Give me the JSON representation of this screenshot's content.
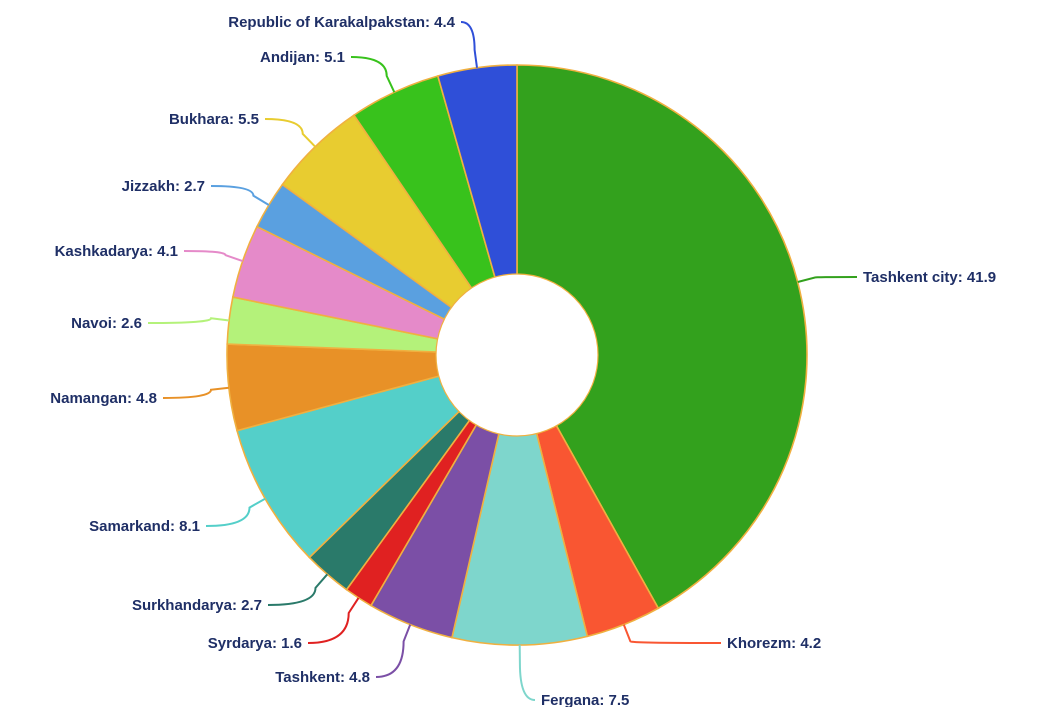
{
  "chart_data": {
    "type": "pie",
    "style": "donut",
    "title": "",
    "slices": [
      {
        "label": "Tashkent city",
        "value": 41.9,
        "text": "Tashkent city: 41.9",
        "color": "#33a11d"
      },
      {
        "label": "Khorezm",
        "value": 4.2,
        "text": "Khorezm: 4.2",
        "color": "#f95632"
      },
      {
        "label": "Fergana",
        "value": 7.5,
        "text": "Fergana: 7.5",
        "color": "#7ed6cc"
      },
      {
        "label": "Tashkent",
        "value": 4.8,
        "text": "Tashkent: 4.8",
        "color": "#7b4fa6"
      },
      {
        "label": "Syrdarya",
        "value": 1.6,
        "text": "Syrdarya: 1.6",
        "color": "#e02121"
      },
      {
        "label": "Surkhandarya",
        "value": 2.7,
        "text": "Surkhandarya: 2.7",
        "color": "#2a7a6a"
      },
      {
        "label": "Samarkand",
        "value": 8.1,
        "text": "Samarkand: 8.1",
        "color": "#54cfc9"
      },
      {
        "label": "Namangan",
        "value": 4.8,
        "text": "Namangan: 4.8",
        "color": "#e89127"
      },
      {
        "label": "Navoi",
        "value": 2.6,
        "text": "Navoi: 2.6",
        "color": "#b4f27a"
      },
      {
        "label": "Kashkadarya",
        "value": 4.1,
        "text": "Kashkadarya: 4.1",
        "color": "#e58ac9"
      },
      {
        "label": "Jizzakh",
        "value": 2.7,
        "text": "Jizzakh: 2.7",
        "color": "#5aa0e0"
      },
      {
        "label": "Bukhara",
        "value": 5.5,
        "text": "Bukhara: 5.5",
        "color": "#e8cc30"
      },
      {
        "label": "Andijan",
        "value": 5.1,
        "text": "Andijan: 5.1",
        "color": "#38c21c"
      },
      {
        "label": "Republic of Karakalpakstan",
        "value": 4.4,
        "text": "Republic of Karakalpakstan: 4.4",
        "color": "#2f4fd8"
      }
    ]
  }
}
